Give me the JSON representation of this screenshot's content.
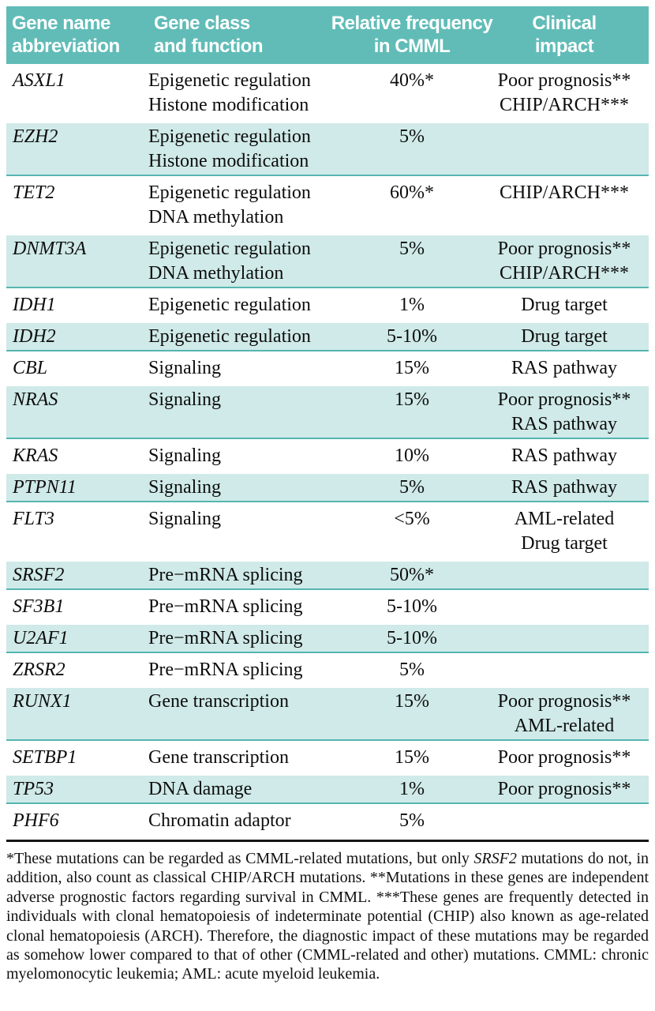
{
  "colors": {
    "header_teal": "#61bcb7",
    "row_teal": "#cfeae8",
    "row_border_teal": "#56b5b0",
    "bottom_rule": "#161616",
    "header_text": "#ffffff",
    "body_text": "#0d0d0d"
  },
  "table": {
    "columns": [
      {
        "id": "gene",
        "label_lines": [
          "Gene name",
          "abbreviation"
        ],
        "align": "left"
      },
      {
        "id": "class",
        "label_lines": [
          "Gene class",
          "and function"
        ],
        "align": "left"
      },
      {
        "id": "frequency",
        "label_lines": [
          "Relative frequency",
          "in CMML"
        ],
        "align": "center"
      },
      {
        "id": "impact",
        "label_lines": [
          "Clinical",
          "impact"
        ],
        "align": "center"
      }
    ],
    "rows": [
      {
        "gene": "ASXL1",
        "class_lines": [
          "Epigenetic regulation",
          "Histone modification"
        ],
        "frequency": "40%*",
        "impact_lines": [
          "Poor prognosis**",
          "CHIP/ARCH***"
        ],
        "shaded": false
      },
      {
        "gene": "EZH2",
        "class_lines": [
          "Epigenetic regulation",
          "Histone modification"
        ],
        "frequency": "5%",
        "impact_lines": [],
        "shaded": true
      },
      {
        "gene": "TET2",
        "class_lines": [
          "Epigenetic regulation",
          "DNA methylation"
        ],
        "frequency": "60%*",
        "impact_lines": [
          "CHIP/ARCH***"
        ],
        "shaded": false
      },
      {
        "gene": "DNMT3A",
        "class_lines": [
          "Epigenetic regulation",
          "DNA methylation"
        ],
        "frequency": "5%",
        "impact_lines": [
          "Poor prognosis**",
          "CHIP/ARCH***"
        ],
        "shaded": true
      },
      {
        "gene": "IDH1",
        "class_lines": [
          "Epigenetic regulation"
        ],
        "frequency": "1%",
        "impact_lines": [
          "Drug target"
        ],
        "shaded": false
      },
      {
        "gene": "IDH2",
        "class_lines": [
          "Epigenetic regulation"
        ],
        "frequency": "5-10%",
        "impact_lines": [
          "Drug target"
        ],
        "shaded": true
      },
      {
        "gene": "CBL",
        "class_lines": [
          "Signaling"
        ],
        "frequency": "15%",
        "impact_lines": [
          "RAS pathway"
        ],
        "shaded": false
      },
      {
        "gene": "NRAS",
        "class_lines": [
          "Signaling"
        ],
        "frequency": "15%",
        "impact_lines": [
          "Poor prognosis**",
          "RAS pathway"
        ],
        "shaded": true
      },
      {
        "gene": "KRAS",
        "class_lines": [
          "Signaling"
        ],
        "frequency": "10%",
        "impact_lines": [
          "RAS pathway"
        ],
        "shaded": false
      },
      {
        "gene": "PTPN11",
        "class_lines": [
          "Signaling"
        ],
        "frequency": "5%",
        "impact_lines": [
          "RAS pathway"
        ],
        "shaded": true
      },
      {
        "gene": "FLT3",
        "class_lines": [
          "Signaling"
        ],
        "frequency": "<5%",
        "impact_lines": [
          "AML-related",
          "Drug target"
        ],
        "shaded": false
      },
      {
        "gene": "SRSF2",
        "class_lines": [
          "Pre−mRNA splicing"
        ],
        "frequency": "50%*",
        "impact_lines": [],
        "shaded": true
      },
      {
        "gene": "SF3B1",
        "class_lines": [
          "Pre−mRNA splicing"
        ],
        "frequency": "5-10%",
        "impact_lines": [],
        "shaded": false
      },
      {
        "gene": "U2AF1",
        "class_lines": [
          "Pre−mRNA splicing"
        ],
        "frequency": "5-10%",
        "impact_lines": [],
        "shaded": true
      },
      {
        "gene": "ZRSR2",
        "class_lines": [
          "Pre−mRNA splicing"
        ],
        "frequency": "5%",
        "impact_lines": [],
        "shaded": false
      },
      {
        "gene": "RUNX1",
        "class_lines": [
          "Gene transcription"
        ],
        "frequency": "15%",
        "impact_lines": [
          "Poor prognosis**",
          "AML-related"
        ],
        "shaded": true
      },
      {
        "gene": "SETBP1",
        "class_lines": [
          "Gene transcription"
        ],
        "frequency": "15%",
        "impact_lines": [
          "Poor prognosis**"
        ],
        "shaded": false
      },
      {
        "gene": "TP53",
        "class_lines": [
          "DNA damage"
        ],
        "frequency": "1%",
        "impact_lines": [
          "Poor prognosis**"
        ],
        "shaded": true
      },
      {
        "gene": "PHF6",
        "class_lines": [
          "Chromatin adaptor"
        ],
        "frequency": "5%",
        "impact_lines": [],
        "shaded": false
      }
    ]
  },
  "footnote": {
    "segments": [
      {
        "text": "*These mutations can be regarded as CMML-related mutations, but only ",
        "italic": false
      },
      {
        "text": "SRSF2",
        "italic": true
      },
      {
        "text": " mutations do not, in addition, also count as classical CHIP/ARCH mutations. **Mutations in these genes are independent adverse prognostic factors regarding survival in CMML. ***These genes are frequently detected in individuals with clonal hematopoiesis of indeterminate potential (CHIP) also known as age-related clonal hematopoiesis (ARCH). Therefore, the diagnostic impact of these mutations may be regarded as somehow lower compared to that of other (CMML-related and other) mutations. CMML: chronic myelomonocytic leukemia; AML: acute myeloid leukemia.",
        "italic": false
      }
    ]
  }
}
